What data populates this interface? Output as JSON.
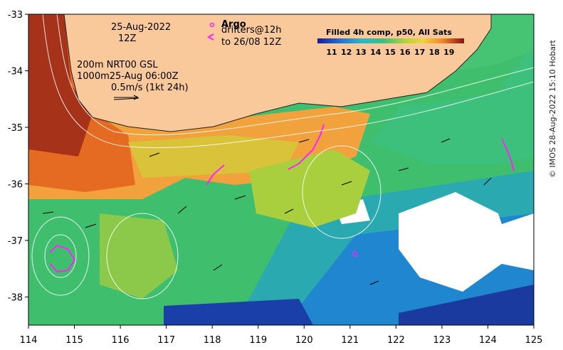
{
  "map": {
    "date_line1": "25-Aug-2022",
    "date_line2": "12Z",
    "contour_line1": "200m  NRT00 GSL",
    "contour_line2": "1000m25-Aug 06:00Z",
    "scale_label": "0.5m/s (1kt 24h)",
    "argo_label": "Argo",
    "drifters_line1": "drifters@12h",
    "drifters_line2": "to 26/08 12Z",
    "colorbar_title": "Filled 4h comp, p50, All Sats",
    "colorbar_ticks": [
      "11",
      "12",
      "13",
      "14",
      "15",
      "16",
      "17",
      "18",
      "19"
    ],
    "x_ticks": [
      "114",
      "115",
      "116",
      "117",
      "118",
      "119",
      "120",
      "121",
      "122",
      "123",
      "124",
      "125"
    ],
    "y_ticks": [
      "-33",
      "-34",
      "-35",
      "-36",
      "-37",
      "-38"
    ],
    "credit": "© IMOS 28-Aug-2022 15:10 Hobart",
    "colors": {
      "land": "#f9c89b",
      "cold": "#1f3fb5",
      "mid": "#3cc07c",
      "warm": "#f2a23c",
      "hot": "#8b1d1d",
      "drifter": "#ff22ff"
    }
  }
}
